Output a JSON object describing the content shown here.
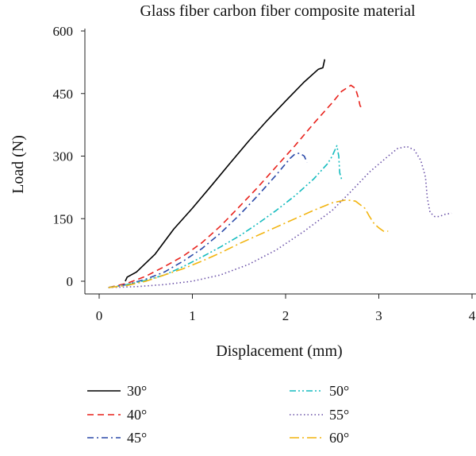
{
  "chart_data": {
    "type": "line",
    "title": "Glass fiber carbon fiber composite material",
    "xlabel": "Displacement (mm)",
    "ylabel": "Load (N)",
    "xlim": [
      0,
      4
    ],
    "ylim": [
      -20,
      600
    ],
    "x_ticks": [
      "0",
      "1",
      "2",
      "3",
      "4"
    ],
    "y_ticks": [
      "0",
      "150",
      "300",
      "450",
      "600"
    ],
    "grid": false,
    "legend_position": "bottom",
    "series": [
      {
        "name": "30°",
        "color": "#000000",
        "dash": "solid",
        "points": [
          [
            0.28,
            0
          ],
          [
            0.3,
            10
          ],
          [
            0.4,
            22
          ],
          [
            0.6,
            65
          ],
          [
            0.8,
            125
          ],
          [
            1.0,
            175
          ],
          [
            1.2,
            228
          ],
          [
            1.4,
            282
          ],
          [
            1.6,
            335
          ],
          [
            1.8,
            385
          ],
          [
            2.0,
            432
          ],
          [
            2.2,
            478
          ],
          [
            2.35,
            508
          ],
          [
            2.4,
            512
          ],
          [
            2.42,
            532
          ]
        ]
      },
      {
        "name": "40°",
        "color": "#e8221c",
        "dash": "dashed",
        "points": [
          [
            0.1,
            -15
          ],
          [
            0.3,
            -5
          ],
          [
            0.5,
            12
          ],
          [
            0.7,
            35
          ],
          [
            0.9,
            60
          ],
          [
            1.1,
            92
          ],
          [
            1.3,
            132
          ],
          [
            1.5,
            178
          ],
          [
            1.7,
            225
          ],
          [
            1.9,
            275
          ],
          [
            2.1,
            325
          ],
          [
            2.3,
            378
          ],
          [
            2.5,
            428
          ],
          [
            2.6,
            455
          ],
          [
            2.7,
            470
          ],
          [
            2.75,
            462
          ],
          [
            2.78,
            440
          ],
          [
            2.8,
            420
          ],
          [
            2.84,
            412
          ]
        ]
      },
      {
        "name": "45°",
        "color": "#2a49a8",
        "dash": "dashdot",
        "points": [
          [
            0.1,
            -15
          ],
          [
            0.3,
            -8
          ],
          [
            0.5,
            5
          ],
          [
            0.7,
            22
          ],
          [
            0.9,
            48
          ],
          [
            1.1,
            78
          ],
          [
            1.3,
            115
          ],
          [
            1.5,
            158
          ],
          [
            1.7,
            205
          ],
          [
            1.9,
            255
          ],
          [
            2.05,
            295
          ],
          [
            2.1,
            305
          ],
          [
            2.15,
            307
          ],
          [
            2.2,
            300
          ],
          [
            2.22,
            290
          ],
          [
            2.23,
            285
          ]
        ]
      },
      {
        "name": "50°",
        "color": "#15bcbf",
        "dash": "dashdotdot",
        "points": [
          [
            0.1,
            -15
          ],
          [
            0.3,
            -8
          ],
          [
            0.5,
            2
          ],
          [
            0.7,
            15
          ],
          [
            0.9,
            35
          ],
          [
            1.1,
            58
          ],
          [
            1.3,
            82
          ],
          [
            1.5,
            108
          ],
          [
            1.7,
            138
          ],
          [
            1.9,
            170
          ],
          [
            2.1,
            205
          ],
          [
            2.3,
            245
          ],
          [
            2.45,
            282
          ],
          [
            2.5,
            300
          ],
          [
            2.52,
            310
          ],
          [
            2.55,
            325
          ],
          [
            2.57,
            300
          ],
          [
            2.58,
            260
          ],
          [
            2.6,
            245
          ]
        ]
      },
      {
        "name": "55°",
        "color": "#6b52a8",
        "dash": "dotted",
        "points": [
          [
            0.1,
            -15
          ],
          [
            0.4,
            -13
          ],
          [
            0.7,
            -8
          ],
          [
            1.0,
            0
          ],
          [
            1.3,
            15
          ],
          [
            1.6,
            40
          ],
          [
            1.9,
            75
          ],
          [
            2.2,
            120
          ],
          [
            2.5,
            170
          ],
          [
            2.7,
            215
          ],
          [
            2.9,
            262
          ],
          [
            3.1,
            300
          ],
          [
            3.2,
            318
          ],
          [
            3.3,
            323
          ],
          [
            3.38,
            315
          ],
          [
            3.45,
            290
          ],
          [
            3.5,
            250
          ],
          [
            3.52,
            200
          ],
          [
            3.55,
            165
          ],
          [
            3.6,
            155
          ],
          [
            3.65,
            155
          ],
          [
            3.7,
            160
          ],
          [
            3.78,
            163
          ]
        ]
      },
      {
        "name": "60°",
        "color": "#f2b40f",
        "dash": "longdashdot",
        "points": [
          [
            0.1,
            -15
          ],
          [
            0.3,
            -10
          ],
          [
            0.5,
            0
          ],
          [
            0.7,
            15
          ],
          [
            0.9,
            30
          ],
          [
            1.1,
            48
          ],
          [
            1.3,
            68
          ],
          [
            1.5,
            90
          ],
          [
            1.7,
            110
          ],
          [
            1.9,
            130
          ],
          [
            2.1,
            150
          ],
          [
            2.3,
            170
          ],
          [
            2.5,
            188
          ],
          [
            2.65,
            195
          ],
          [
            2.75,
            192
          ],
          [
            2.85,
            175
          ],
          [
            2.9,
            155
          ],
          [
            2.95,
            138
          ],
          [
            3.0,
            128
          ],
          [
            3.05,
            120
          ],
          [
            3.1,
            120
          ]
        ]
      }
    ]
  }
}
